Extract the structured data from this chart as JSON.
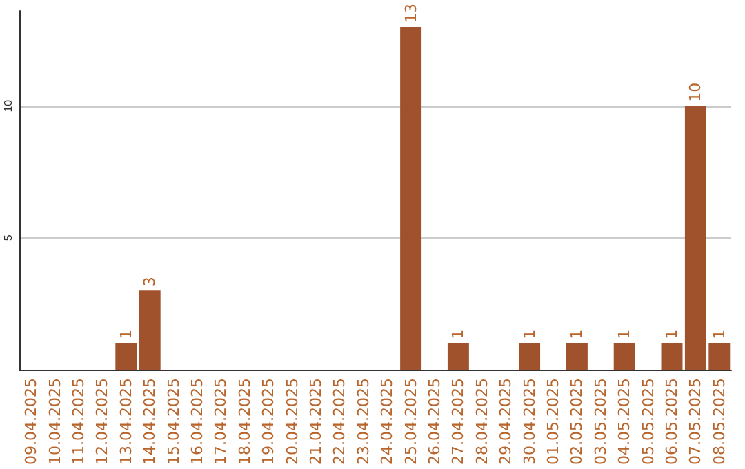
{
  "chart_data": {
    "type": "bar",
    "categories": [
      "09.04.2025",
      "10.04.2025",
      "11.04.2025",
      "12.04.2025",
      "13.04.2025",
      "14.04.2025",
      "15.04.2025",
      "16.04.2025",
      "17.04.2025",
      "18.04.2025",
      "19.04.2025",
      "20.04.2025",
      "21.04.2025",
      "22.04.2025",
      "23.04.2025",
      "24.04.2025",
      "25.04.2025",
      "26.04.2025",
      "27.04.2025",
      "28.04.2025",
      "29.04.2025",
      "30.04.2025",
      "01.05.2025",
      "02.05.2025",
      "03.05.2025",
      "04.05.2025",
      "05.05.2025",
      "06.05.2025",
      "07.05.2025",
      "08.05.2025"
    ],
    "values": [
      0,
      0,
      0,
      0,
      1,
      3,
      0,
      0,
      0,
      0,
      0,
      0,
      0,
      0,
      0,
      0,
      13,
      0,
      1,
      0,
      0,
      1,
      0,
      1,
      0,
      1,
      0,
      1,
      10,
      1
    ],
    "value_labels": [
      null,
      null,
      null,
      null,
      "1",
      "3",
      null,
      null,
      null,
      null,
      null,
      null,
      null,
      null,
      null,
      null,
      "13",
      null,
      "1",
      null,
      null,
      "1",
      null,
      "1",
      null,
      "1",
      null,
      "1",
      "10",
      "1"
    ],
    "color": "#a0522d",
    "ylim": [
      0,
      13.6
    ],
    "yticks": [
      5,
      10
    ],
    "grid": "y"
  }
}
